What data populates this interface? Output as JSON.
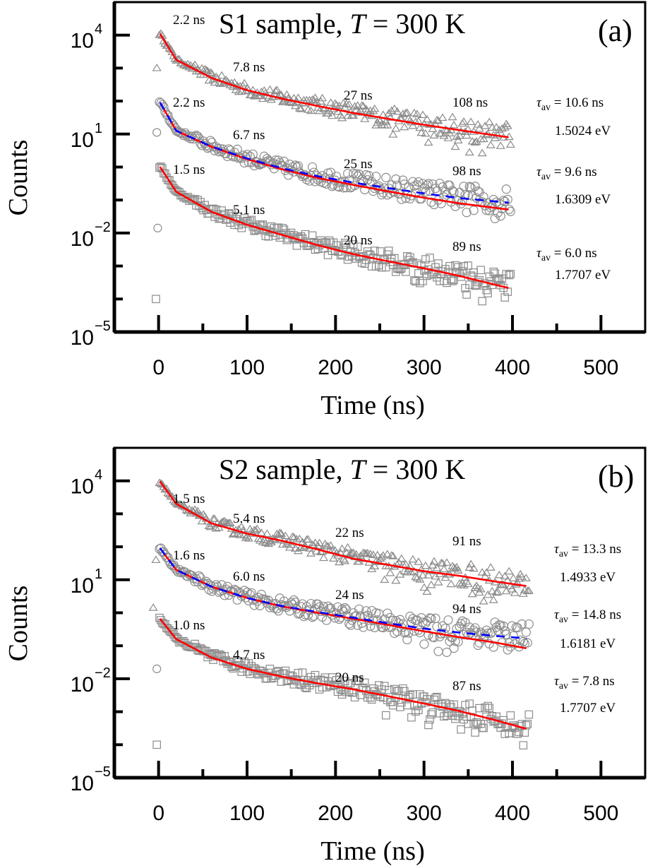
{
  "chart_data": [
    {
      "panel": "(a)",
      "type": "scatter",
      "title": "S1 sample,  T = 300 K",
      "title_prefix": "S1 sample,  ",
      "title_var": "T",
      "title_suffix": " = 300 K",
      "xlabel": "Time (ns)",
      "ylabel": "Counts",
      "yscale": "log",
      "xlim": [
        -50,
        550
      ],
      "ylim_log10": [
        -5,
        5
      ],
      "xticks": [
        0,
        100,
        200,
        300,
        400,
        500
      ],
      "xtick_labels": [
        "0",
        "100",
        "200",
        "300",
        "400",
        "500"
      ],
      "yticks_log10": [
        4,
        1,
        -2,
        -5
      ],
      "ytick_labels": [
        {
          "base": "10",
          "exp": "4"
        },
        {
          "base": "10",
          "exp": "1"
        },
        {
          "base": "10",
          "exp": "−2"
        },
        {
          "base": "10",
          "exp": "−5"
        }
      ],
      "series": [
        {
          "name": "1.5024 eV",
          "marker": "triangle",
          "tau_av_label": "= 10.6 ns",
          "energy_label": "1.5024 eV",
          "lifetimes": [
            "2.2 ns",
            "7.8 ns",
            "27 ns",
            "108 ns"
          ],
          "fit_x": [
            1.6,
            20,
            60,
            100,
            140,
            180,
            220,
            260,
            300,
            340,
            396
          ],
          "fit_log10": [
            4.04,
            3.25,
            2.7,
            2.33,
            2.07,
            1.85,
            1.64,
            1.46,
            1.28,
            1.12,
            0.9
          ],
          "outlier_points": [
            {
              "x": -2,
              "log10": 3.0
            }
          ]
        },
        {
          "name": "1.6309 eV",
          "marker": "circle",
          "tau_av_label": "= 9.6 ns",
          "energy_label": "1.6309 eV",
          "lifetimes": [
            "2.2 ns",
            "6.7 ns",
            "25 ns",
            "98 ns"
          ],
          "fit_x": [
            1.6,
            20,
            60,
            100,
            140,
            180,
            220,
            260,
            300,
            340,
            396
          ],
          "fit_log10": [
            1.96,
            1.1,
            0.61,
            0.24,
            -0.07,
            -0.33,
            -0.54,
            -0.74,
            -0.93,
            -1.1,
            -1.29
          ],
          "dashed_fit_log10": [
            1.96,
            1.1,
            0.62,
            0.26,
            -0.04,
            -0.28,
            -0.47,
            -0.64,
            -0.8,
            -0.94,
            -1.08
          ],
          "outlier_points": [
            {
              "x": -2,
              "log10": 1.05
            },
            {
              "x": -1,
              "log10": -1.85
            }
          ]
        },
        {
          "name": "1.7707 eV",
          "marker": "square",
          "tau_av_label": "= 6.0 ns",
          "energy_label": "1.7707 eV",
          "lifetimes": [
            "1.5 ns",
            "5.1 ns",
            "20 ns",
            "89 ns"
          ],
          "fit_x": [
            1.6,
            20,
            60,
            100,
            140,
            180,
            220,
            260,
            300,
            340,
            396
          ],
          "fit_log10": [
            0.01,
            -0.75,
            -1.36,
            -1.75,
            -2.06,
            -2.37,
            -2.64,
            -2.86,
            -3.07,
            -3.3,
            -3.67
          ],
          "outlier_points": [
            {
              "x": -3,
              "log10": -4.0
            }
          ]
        }
      ]
    },
    {
      "panel": "(b)",
      "type": "scatter",
      "title": "S2 sample,  T = 300 K",
      "title_prefix": "S2 sample,  ",
      "title_var": "T",
      "title_suffix": " = 300 K",
      "xlabel": "Time (ns)",
      "ylabel": "Counts",
      "yscale": "log",
      "xlim": [
        -50,
        550
      ],
      "ylim_log10": [
        -5,
        5
      ],
      "xticks": [
        0,
        100,
        200,
        300,
        400,
        500
      ],
      "xtick_labels": [
        "0",
        "100",
        "200",
        "300",
        "400",
        "500"
      ],
      "yticks_log10": [
        4,
        1,
        -2,
        -5
      ],
      "ytick_labels": [
        {
          "base": "10",
          "exp": "4"
        },
        {
          "base": "10",
          "exp": "1"
        },
        {
          "base": "10",
          "exp": "−2"
        },
        {
          "base": "10",
          "exp": "−5"
        }
      ],
      "series": [
        {
          "name": "1.4933 eV",
          "marker": "triangle",
          "tau_av_label": "= 13.3 ns",
          "energy_label": "1.4933 eV",
          "lifetimes": [
            "1.5 ns",
            "5.4 ns",
            "22 ns",
            "91 ns"
          ],
          "fit_x": [
            1.6,
            20,
            60,
            100,
            140,
            180,
            220,
            260,
            300,
            340,
            380,
            416
          ],
          "fit_log10": [
            3.98,
            3.3,
            2.71,
            2.4,
            2.18,
            1.92,
            1.64,
            1.45,
            1.26,
            1.12,
            0.95,
            0.81
          ],
          "outlier_points": [
            {
              "x": -3,
              "log10": 1.6
            },
            {
              "x": -6,
              "log10": 0.15
            }
          ]
        },
        {
          "name": "1.6181 eV",
          "marker": "circle",
          "tau_av_label": "= 14.8 ns",
          "energy_label": "1.6181 eV",
          "lifetimes": [
            "1.6 ns",
            "6.0 ns",
            "24 ns",
            "94 ns"
          ],
          "fit_x": [
            1.6,
            20,
            60,
            100,
            140,
            180,
            220,
            260,
            300,
            340,
            380,
            416
          ],
          "fit_log10": [
            1.96,
            1.3,
            0.79,
            0.45,
            0.19,
            0.0,
            -0.18,
            -0.37,
            -0.56,
            -0.74,
            -0.9,
            -1.08
          ],
          "dashed_fit_log10": [
            1.96,
            1.3,
            0.79,
            0.45,
            0.2,
            0.02,
            -0.15,
            -0.32,
            -0.48,
            -0.6,
            -0.7,
            -0.78
          ],
          "outlier_points": [
            {
              "x": -2,
              "log10": -1.7
            }
          ]
        },
        {
          "name": "1.7707 eV",
          "marker": "square",
          "tau_av_label": "= 7.8 ns",
          "energy_label": "1.7707 eV",
          "lifetimes": [
            "1.0 ns",
            "4.7 ns",
            "20 ns",
            "87 ns"
          ],
          "fit_x": [
            1.6,
            20,
            60,
            100,
            140,
            180,
            220,
            260,
            300,
            340,
            380,
            416
          ],
          "fit_log10": [
            -0.18,
            -0.8,
            -1.36,
            -1.7,
            -1.94,
            -2.14,
            -2.32,
            -2.53,
            -2.75,
            -2.98,
            -3.25,
            -3.52
          ],
          "outlier_points": [
            {
              "x": -2,
              "log10": -4.0
            }
          ]
        }
      ]
    }
  ],
  "colors": {
    "fit_red": "#ff0000",
    "fit_blue_dashed": "#0000ff",
    "markers": "#8c8c8c",
    "axis": "#000000"
  },
  "tau_symbol": "τ",
  "tau_subscript": "av"
}
